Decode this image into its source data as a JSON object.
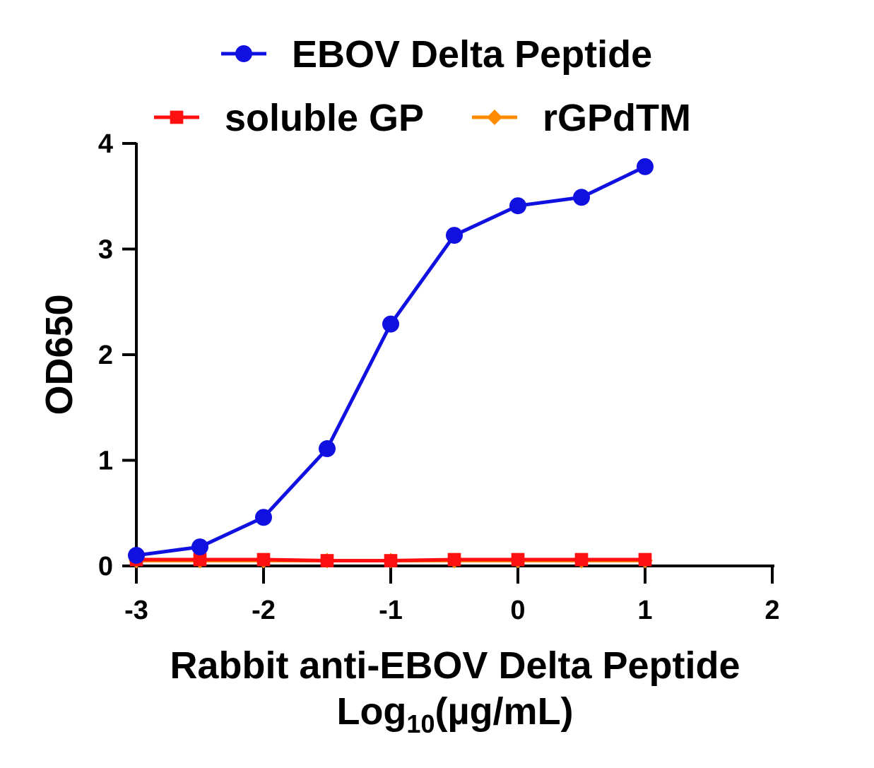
{
  "chart_data": {
    "type": "line",
    "x": [
      -3,
      -2.5,
      -2,
      -1.5,
      -1,
      -0.5,
      0,
      0.5,
      1
    ],
    "series": [
      {
        "name": "EBOV Delta Peptide",
        "color": "#1010e0",
        "marker": "circle",
        "values": [
          0.1,
          0.18,
          0.46,
          1.11,
          2.29,
          3.13,
          3.41,
          3.49,
          3.78
        ]
      },
      {
        "name": "soluble GP",
        "color": "#ff1010",
        "marker": "square",
        "values": [
          0.06,
          0.06,
          0.06,
          0.05,
          0.05,
          0.06,
          0.06,
          0.06,
          0.06
        ]
      },
      {
        "name": "rGPdTM",
        "color": "#ff8c00",
        "marker": "diamond",
        "values": [
          0.05,
          0.05,
          0.05,
          0.05,
          0.05,
          0.05,
          0.05,
          0.05,
          0.05
        ]
      }
    ],
    "xlim": [
      -3,
      2
    ],
    "ylim": [
      0,
      4
    ],
    "xticks": [
      "-3",
      "-2",
      "-1",
      "0",
      "1",
      "2"
    ],
    "yticks": [
      "0",
      "1",
      "2",
      "3",
      "4"
    ],
    "ylabel": "OD650",
    "xlabel_line1": "Rabbit anti-EBOV Delta Peptide",
    "xlabel_line2_main": "Log",
    "xlabel_line2_sub": "10",
    "xlabel_line2_rest": "(µg/mL)",
    "grid": false,
    "legend_position": "top"
  }
}
